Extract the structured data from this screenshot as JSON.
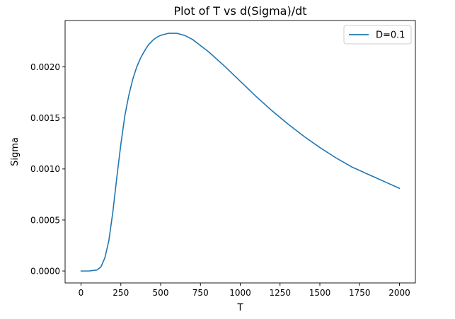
{
  "chart_data": {
    "type": "line",
    "title": "Plot of T vs d(Sigma)/dt",
    "xlabel": "T",
    "ylabel": "Sigma",
    "xlim": [
      -100,
      2100
    ],
    "ylim": [
      -0.000117,
      0.002455
    ],
    "xticks": [
      0,
      250,
      500,
      750,
      1000,
      1250,
      1500,
      1750,
      2000
    ],
    "xtick_labels": [
      "0",
      "250",
      "500",
      "750",
      "1000",
      "1250",
      "1500",
      "1750",
      "2000"
    ],
    "yticks": [
      0,
      0.0005,
      0.001,
      0.0015,
      0.002
    ],
    "ytick_labels": [
      "0.0000",
      "0.0005",
      "0.0010",
      "0.0015",
      "0.0020"
    ],
    "grid": false,
    "legend": "top-right",
    "series": [
      {
        "name": "D=0.1",
        "color": "#1f77b4",
        "x": [
          0,
          50,
          100,
          125,
          150,
          175,
          200,
          225,
          250,
          275,
          300,
          325,
          350,
          375,
          400,
          425,
          450,
          475,
          500,
          525,
          550,
          575,
          600,
          625,
          650,
          700,
          750,
          800,
          900,
          1000,
          1100,
          1200,
          1300,
          1400,
          1500,
          1600,
          1700,
          1800,
          1900,
          2000
        ],
        "y": [
          0.0,
          0.0,
          1e-05,
          4e-05,
          0.00013,
          0.0003,
          0.00058,
          0.00092,
          0.00124,
          0.00152,
          0.00172,
          0.00188,
          0.002,
          0.00209,
          0.00216,
          0.00222,
          0.00226,
          0.00229,
          0.00231,
          0.00232,
          0.00233,
          0.00233,
          0.00233,
          0.00232,
          0.00231,
          0.00227,
          0.00221,
          0.00215,
          0.00201,
          0.00186,
          0.00171,
          0.00157,
          0.00144,
          0.00132,
          0.00121,
          0.00111,
          0.00102,
          0.00095,
          0.00088,
          0.00081
        ]
      }
    ]
  }
}
